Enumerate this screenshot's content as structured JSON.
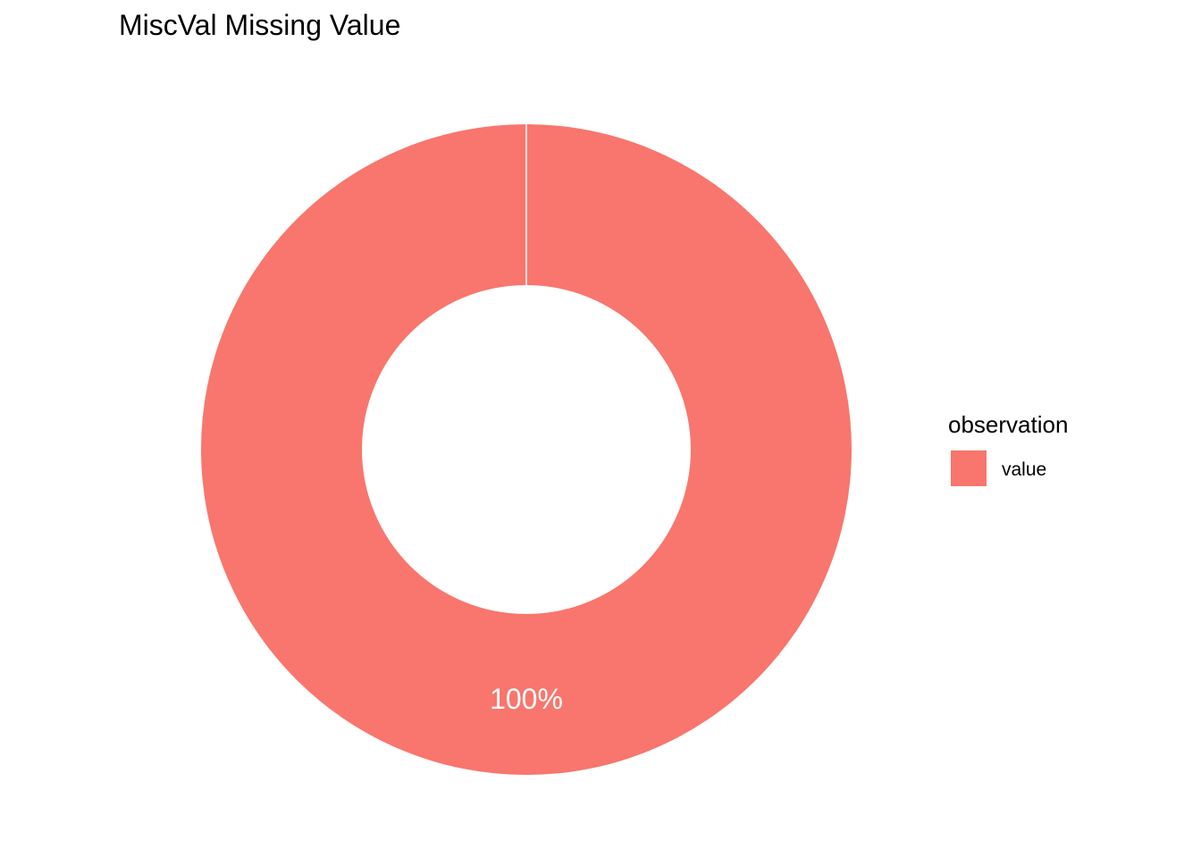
{
  "chart_data": {
    "type": "pie",
    "style": "donut",
    "title": "MiscVal Missing Value",
    "legend": {
      "title": "observation",
      "placement": "right"
    },
    "slices": [
      {
        "label": "value",
        "value": 100,
        "display_label": "100%",
        "color": "#F8766D"
      }
    ]
  },
  "colors": {
    "background": "#FFFFFF",
    "slice_label_text": "#FFFFFF",
    "separator": "#FFFFFF"
  }
}
